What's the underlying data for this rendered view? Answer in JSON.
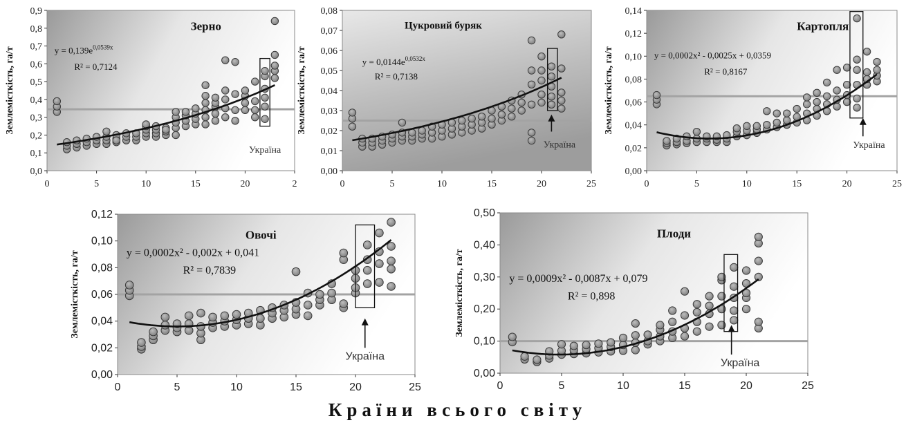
{
  "figure": {
    "common_xlabel": "Країни всього світу"
  },
  "chart_data": [
    {
      "type": "scatter",
      "title": "Зерно",
      "ylabel": "Землемісткість, га/т",
      "xlim": [
        0,
        25
      ],
      "ylim": [
        0,
        0.9
      ],
      "xticks": [
        "0",
        "5",
        "10",
        "15",
        "20",
        "2"
      ],
      "yticks": [
        "0,0",
        "0,1",
        "0,2",
        "0,3",
        "0,4",
        "0,5",
        "0,6",
        "0,7",
        "0,8",
        "0,9"
      ],
      "equation": "y = 0,139e",
      "equation_exp": "0,0539x",
      "r2": "R² = 0,7124",
      "trend": {
        "kind": "exp",
        "a": 0.139,
        "b": 0.0539,
        "from": 1,
        "to": 23
      },
      "hline": 0.345,
      "highlight_box": {
        "x": [
          21.5,
          22.5
        ],
        "y": [
          0.25,
          0.63
        ]
      },
      "annotation": "Україна",
      "annotation_at": [
        22,
        0.1
      ],
      "arrow": null,
      "background": "grad-right",
      "x": [
        1,
        1,
        1,
        2,
        2,
        2,
        3,
        3,
        3,
        4,
        4,
        4,
        5,
        5,
        5,
        6,
        6,
        6,
        6,
        7,
        7,
        7,
        7,
        8,
        8,
        8,
        9,
        9,
        9,
        10,
        10,
        10,
        10,
        10,
        11,
        11,
        11,
        11,
        12,
        12,
        12,
        12,
        13,
        13,
        13,
        13,
        13,
        14,
        14,
        14,
        14,
        15,
        15,
        15,
        15,
        16,
        16,
        16,
        16,
        16,
        16,
        17,
        17,
        17,
        17,
        17,
        18,
        18,
        18,
        18,
        18,
        19,
        19,
        19,
        19,
        20,
        20,
        20,
        20,
        21,
        21,
        21,
        21,
        22,
        22,
        22,
        22,
        22,
        22,
        23,
        23,
        23,
        23,
        23
      ],
      "y": [
        0.33,
        0.36,
        0.39,
        0.12,
        0.14,
        0.16,
        0.13,
        0.15,
        0.17,
        0.14,
        0.16,
        0.18,
        0.15,
        0.17,
        0.19,
        0.15,
        0.17,
        0.19,
        0.22,
        0.16,
        0.18,
        0.2,
        0.17,
        0.17,
        0.19,
        0.21,
        0.17,
        0.19,
        0.21,
        0.19,
        0.21,
        0.23,
        0.25,
        0.26,
        0.19,
        0.21,
        0.23,
        0.25,
        0.2,
        0.22,
        0.24,
        0.23,
        0.2,
        0.24,
        0.27,
        0.3,
        0.33,
        0.25,
        0.28,
        0.31,
        0.33,
        0.26,
        0.29,
        0.32,
        0.35,
        0.26,
        0.3,
        0.34,
        0.38,
        0.42,
        0.48,
        0.28,
        0.32,
        0.36,
        0.38,
        0.41,
        0.3,
        0.35,
        0.4,
        0.45,
        0.62,
        0.28,
        0.34,
        0.43,
        0.61,
        0.34,
        0.38,
        0.42,
        0.45,
        0.3,
        0.34,
        0.39,
        0.5,
        0.29,
        0.36,
        0.41,
        0.46,
        0.53,
        0.56,
        0.52,
        0.56,
        0.59,
        0.65,
        0.84
      ]
    },
    {
      "type": "scatter",
      "title": "Цукровий буряк",
      "ylabel": "Землемісткість, га/т",
      "xlim": [
        0,
        25
      ],
      "ylim": [
        0,
        0.08
      ],
      "xticks": [
        "0",
        "5",
        "10",
        "15",
        "20",
        "25"
      ],
      "yticks": [
        "0,00",
        "0,01",
        "0,02",
        "0,03",
        "0,04",
        "0,05",
        "0,06",
        "0,07",
        "0,08"
      ],
      "equation": "y = 0,0144e",
      "equation_exp": "0,0532x",
      "r2": "R² = 0,7138",
      "trend": {
        "kind": "exp",
        "a": 0.0144,
        "b": 0.0532,
        "from": 1,
        "to": 22
      },
      "hline": 0.025,
      "highlight_box": {
        "x": [
          20.6,
          21.6
        ],
        "y": [
          0.03,
          0.061
        ]
      },
      "annotation": "Україна",
      "annotation_at": [
        21.8,
        0.0115
      ],
      "arrow": {
        "x": 21,
        "from": 0.0195,
        "to": 0.028
      },
      "background": "grad-gray",
      "x": [
        1,
        1,
        1,
        2,
        2,
        2,
        3,
        3,
        3,
        4,
        4,
        4,
        5,
        5,
        5,
        6,
        6,
        6,
        6,
        7,
        7,
        7,
        8,
        8,
        8,
        9,
        9,
        9,
        10,
        10,
        10,
        11,
        11,
        11,
        12,
        12,
        12,
        13,
        13,
        13,
        14,
        14,
        14,
        15,
        15,
        15,
        16,
        16,
        16,
        17,
        17,
        17,
        18,
        18,
        18,
        19,
        19,
        19,
        19,
        19,
        19,
        20,
        20,
        20,
        20,
        20,
        21,
        21,
        21,
        21,
        21,
        22,
        22,
        22,
        22,
        22
      ],
      "y": [
        0.022,
        0.026,
        0.029,
        0.012,
        0.014,
        0.016,
        0.012,
        0.014,
        0.016,
        0.013,
        0.015,
        0.017,
        0.014,
        0.016,
        0.018,
        0.015,
        0.017,
        0.019,
        0.024,
        0.015,
        0.017,
        0.019,
        0.016,
        0.018,
        0.02,
        0.016,
        0.019,
        0.022,
        0.017,
        0.02,
        0.023,
        0.018,
        0.021,
        0.024,
        0.019,
        0.022,
        0.025,
        0.02,
        0.023,
        0.026,
        0.021,
        0.024,
        0.027,
        0.023,
        0.026,
        0.03,
        0.025,
        0.028,
        0.032,
        0.027,
        0.031,
        0.035,
        0.03,
        0.034,
        0.038,
        0.015,
        0.019,
        0.033,
        0.043,
        0.05,
        0.065,
        0.034,
        0.038,
        0.045,
        0.05,
        0.057,
        0.033,
        0.037,
        0.042,
        0.047,
        0.052,
        0.031,
        0.035,
        0.039,
        0.051,
        0.068
      ]
    },
    {
      "type": "scatter",
      "title": "Картопля",
      "ylabel": "Землемісткість, га/т",
      "xlim": [
        0,
        25
      ],
      "ylim": [
        0,
        0.14
      ],
      "xticks": [
        "0",
        "5",
        "10",
        "15",
        "20",
        "25"
      ],
      "yticks": [
        "0,00",
        "0,02",
        "0,04",
        "0,06",
        "0,08",
        "0,10",
        "0,12",
        "0,14"
      ],
      "equation": "y = 0,0002x² - 0,0025x + 0,0359",
      "equation_exp": "",
      "r2": "R² = 0,8167",
      "trend": {
        "kind": "poly",
        "a": 0.0002,
        "b": -0.0025,
        "c": 0.0359,
        "from": 1,
        "to": 23
      },
      "hline": 0.065,
      "highlight_box": {
        "x": [
          20.3,
          21.6
        ],
        "y": [
          0.046,
          0.139
        ]
      },
      "annotation": "Україна",
      "annotation_at": [
        22.2,
        0.02
      ],
      "arrow": {
        "x": 21.6,
        "from": 0.03,
        "to": 0.046
      },
      "background": "grad-right",
      "x": [
        1,
        1,
        1,
        2,
        2,
        2,
        3,
        3,
        3,
        4,
        4,
        4,
        5,
        5,
        5,
        6,
        6,
        6,
        7,
        7,
        7,
        8,
        8,
        8,
        9,
        9,
        9,
        10,
        10,
        10,
        11,
        11,
        11,
        12,
        12,
        12,
        13,
        13,
        13,
        14,
        14,
        14,
        15,
        15,
        15,
        16,
        16,
        16,
        16,
        17,
        17,
        17,
        17,
        18,
        18,
        18,
        18,
        19,
        19,
        19,
        19,
        20,
        20,
        20,
        20,
        21,
        21,
        21,
        21,
        21,
        21,
        22,
        22,
        22,
        22,
        23,
        23,
        23,
        23
      ],
      "y": [
        0.058,
        0.062,
        0.066,
        0.022,
        0.024,
        0.026,
        0.023,
        0.025,
        0.028,
        0.024,
        0.026,
        0.03,
        0.025,
        0.028,
        0.034,
        0.025,
        0.028,
        0.03,
        0.025,
        0.027,
        0.03,
        0.025,
        0.028,
        0.031,
        0.03,
        0.034,
        0.037,
        0.031,
        0.035,
        0.039,
        0.033,
        0.036,
        0.039,
        0.036,
        0.04,
        0.052,
        0.038,
        0.042,
        0.05,
        0.04,
        0.044,
        0.05,
        0.042,
        0.047,
        0.054,
        0.044,
        0.05,
        0.058,
        0.064,
        0.048,
        0.054,
        0.06,
        0.068,
        0.052,
        0.058,
        0.065,
        0.077,
        0.056,
        0.062,
        0.07,
        0.088,
        0.06,
        0.066,
        0.075,
        0.09,
        0.055,
        0.063,
        0.075,
        0.088,
        0.097,
        0.133,
        0.075,
        0.08,
        0.086,
        0.104,
        0.078,
        0.083,
        0.088,
        0.095
      ]
    },
    {
      "type": "scatter",
      "title": "Овочі",
      "ylabel": "Землемісткість, га/т",
      "xlim": [
        0,
        25
      ],
      "ylim": [
        0,
        0.12
      ],
      "xticks": [
        "0",
        "5",
        "10",
        "15",
        "20",
        "25"
      ],
      "yticks": [
        "0,00",
        "0,02",
        "0,04",
        "0,06",
        "0,08",
        "0,10",
        "0,12"
      ],
      "equation": "y = 0,0002x² - 0,002x + 0,041",
      "equation_exp": "",
      "r2": "R² = 0,7839",
      "trend": {
        "kind": "poly",
        "a": 0.0002,
        "b": -0.002,
        "c": 0.041,
        "from": 1,
        "to": 23
      },
      "hline": 0.06,
      "highlight_box": {
        "x": [
          20,
          21.6
        ],
        "y": [
          0.05,
          0.112
        ]
      },
      "annotation": "Україна",
      "annotation_at": [
        20.8,
        0.011
      ],
      "arrow": {
        "x": 20.8,
        "from": 0.02,
        "to": 0.042
      },
      "background": "grad-right",
      "x": [
        1,
        1,
        1,
        2,
        2,
        2,
        3,
        3,
        3,
        4,
        4,
        4,
        5,
        5,
        5,
        6,
        6,
        6,
        7,
        7,
        7,
        7,
        8,
        8,
        8,
        9,
        9,
        9,
        10,
        10,
        10,
        11,
        11,
        11,
        12,
        12,
        12,
        13,
        13,
        13,
        14,
        14,
        14,
        15,
        15,
        15,
        15,
        16,
        16,
        16,
        17,
        17,
        17,
        18,
        18,
        18,
        19,
        19,
        19,
        19,
        20,
        20,
        20,
        20,
        21,
        21,
        21,
        21,
        22,
        22,
        22,
        22,
        23,
        23,
        23,
        23,
        23
      ],
      "y": [
        0.059,
        0.063,
        0.067,
        0.019,
        0.021,
        0.024,
        0.026,
        0.029,
        0.032,
        0.033,
        0.037,
        0.043,
        0.032,
        0.035,
        0.038,
        0.033,
        0.038,
        0.044,
        0.026,
        0.031,
        0.036,
        0.046,
        0.035,
        0.039,
        0.043,
        0.036,
        0.04,
        0.044,
        0.037,
        0.041,
        0.045,
        0.038,
        0.042,
        0.046,
        0.037,
        0.042,
        0.048,
        0.042,
        0.046,
        0.05,
        0.043,
        0.048,
        0.052,
        0.045,
        0.049,
        0.054,
        0.077,
        0.044,
        0.052,
        0.061,
        0.052,
        0.056,
        0.06,
        0.056,
        0.061,
        0.068,
        0.05,
        0.053,
        0.086,
        0.091,
        0.061,
        0.065,
        0.072,
        0.078,
        0.068,
        0.078,
        0.086,
        0.097,
        0.069,
        0.083,
        0.092,
        0.106,
        0.066,
        0.079,
        0.085,
        0.096,
        0.114
      ]
    },
    {
      "type": "scatter",
      "title": "Плоди",
      "ylabel": "Землемісткість, га/т",
      "xlim": [
        0,
        25
      ],
      "ylim": [
        0,
        0.5
      ],
      "xticks": [
        "0",
        "5",
        "10",
        "15",
        "20",
        "25"
      ],
      "yticks": [
        "0,00",
        "0,10",
        "0,20",
        "0,30",
        "0,40",
        "0,50"
      ],
      "equation": "y = 0,0009x² - 0,0087x + 0,079",
      "equation_exp": "",
      "r2": "R² = 0,898",
      "trend": {
        "kind": "poly",
        "a": 0.0009,
        "b": -0.0087,
        "c": 0.079,
        "from": 1,
        "to": 21
      },
      "hline": 0.1,
      "highlight_box": {
        "x": [
          18.2,
          19.3
        ],
        "y": [
          0.13,
          0.37
        ]
      },
      "annotation": "Україна",
      "annotation_at": [
        19.5,
        0.022
      ],
      "arrow": {
        "x": 18.8,
        "from": 0.058,
        "to": 0.15
      },
      "background": "grad-right",
      "x": [
        1,
        1,
        2,
        2,
        3,
        3,
        4,
        4,
        4,
        5,
        5,
        5,
        6,
        6,
        6,
        7,
        7,
        7,
        8,
        8,
        8,
        9,
        9,
        9,
        10,
        10,
        10,
        11,
        11,
        11,
        11,
        12,
        12,
        12,
        13,
        13,
        13,
        13,
        14,
        14,
        14,
        14,
        15,
        15,
        15,
        15,
        16,
        16,
        16,
        16,
        17,
        17,
        17,
        17,
        18,
        18,
        18,
        18,
        18,
        19,
        19,
        19,
        19,
        19,
        20,
        20,
        20,
        20,
        20,
        21,
        21,
        21,
        21,
        21,
        21
      ],
      "y": [
        0.097,
        0.113,
        0.043,
        0.052,
        0.035,
        0.042,
        0.046,
        0.055,
        0.068,
        0.058,
        0.07,
        0.09,
        0.06,
        0.072,
        0.085,
        0.062,
        0.075,
        0.088,
        0.065,
        0.078,
        0.092,
        0.068,
        0.082,
        0.096,
        0.07,
        0.088,
        0.11,
        0.072,
        0.095,
        0.118,
        0.155,
        0.09,
        0.1,
        0.12,
        0.1,
        0.115,
        0.135,
        0.15,
        0.11,
        0.13,
        0.16,
        0.195,
        0.115,
        0.14,
        0.18,
        0.255,
        0.13,
        0.16,
        0.19,
        0.215,
        0.145,
        0.185,
        0.21,
        0.24,
        0.15,
        0.2,
        0.24,
        0.29,
        0.3,
        0.165,
        0.195,
        0.235,
        0.27,
        0.33,
        0.2,
        0.235,
        0.25,
        0.28,
        0.32,
        0.14,
        0.16,
        0.3,
        0.35,
        0.405,
        0.425
      ]
    }
  ]
}
